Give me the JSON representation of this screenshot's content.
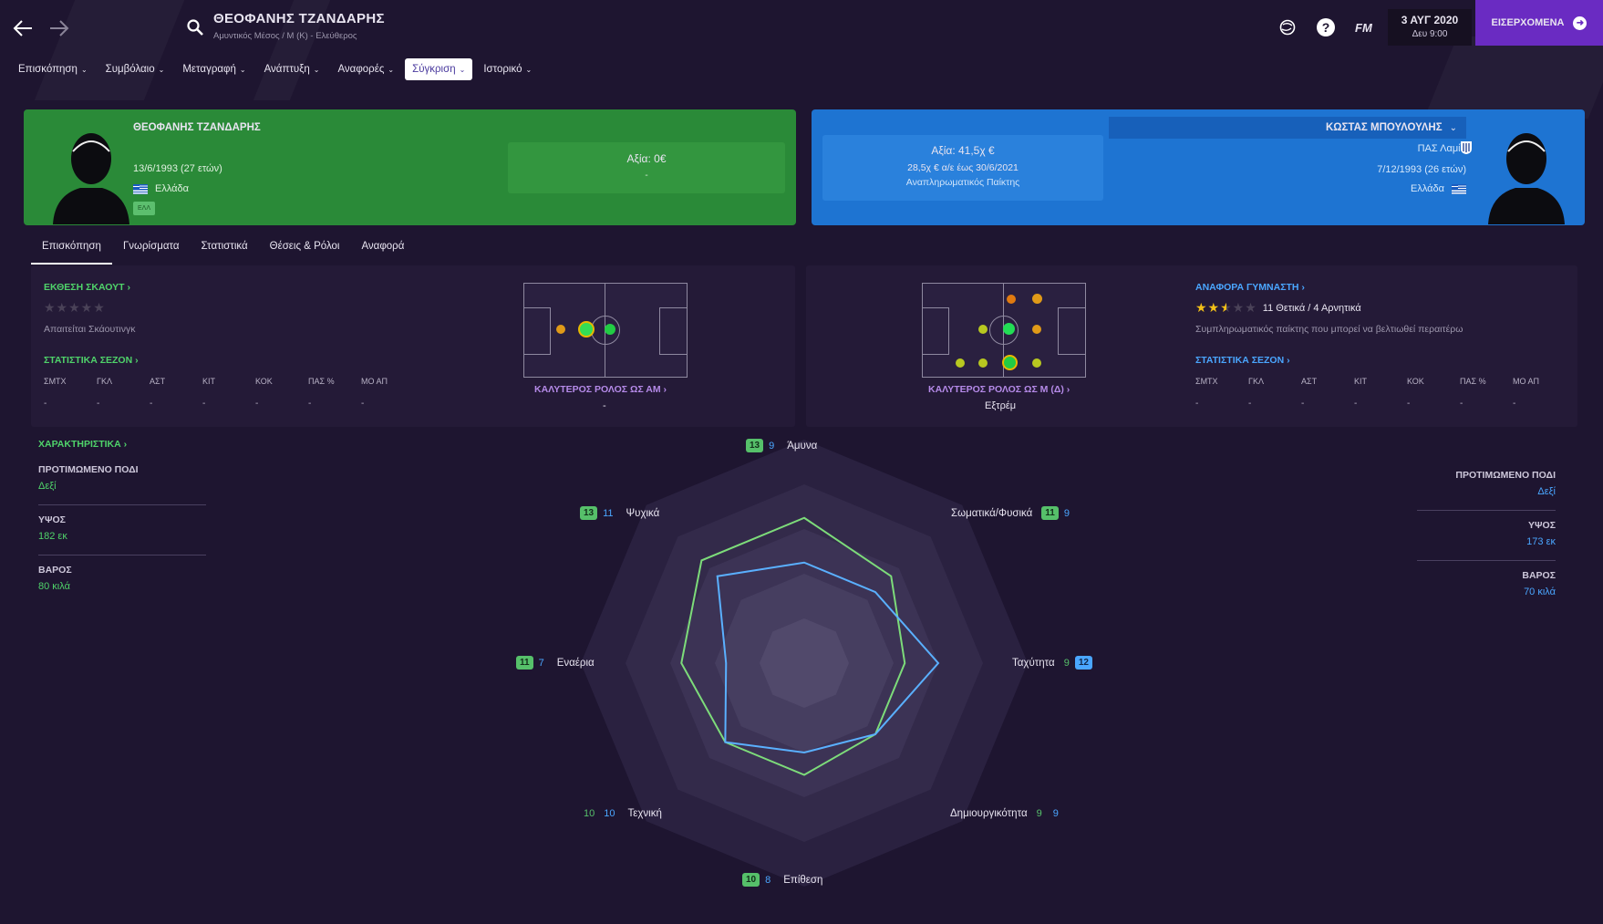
{
  "header": {
    "player_name": "ΘΕΟΦΑΝΗΣ ΤΖΑΝΔΑΡΗΣ",
    "player_sub": "Αμυντικός Μέσος / Μ (Κ) - Ελεύθερος",
    "fm_label": "FM",
    "date": "3 ΑΥΓ 2020",
    "time": "Δευ 9:00",
    "continue_label": "ΕΙΣΕΡΧΟΜΕΝΑ"
  },
  "menu": [
    {
      "label": "Επισκόπηση"
    },
    {
      "label": "Συμβόλαιο"
    },
    {
      "label": "Μεταγραφή"
    },
    {
      "label": "Ανάπτυξη"
    },
    {
      "label": "Αναφορές"
    },
    {
      "label": "Σύγκριση"
    },
    {
      "label": "Ιστορικό"
    }
  ],
  "left_player": {
    "name": "ΘΕΟΦΑΝΗΣ ΤΖΑΝΔΑΡΗΣ",
    "dob": "13/6/1993 (27 ετών)",
    "nation": "Ελλάδα",
    "nat_code": "ΕΛΛ",
    "value": "Αξία: 0€",
    "value_sub": "-"
  },
  "right_player": {
    "name": "ΚΩΣΤΑΣ ΜΠΟΥΛΟΥΛΗΣ",
    "club": "ΠΑΣ Λαμία",
    "dob": "7/12/1993 (26 ετών)",
    "nation": "Ελλάδα",
    "value": "Αξία: 41,5χ €",
    "wage": "28,5χ € α/ε έως 30/6/2021",
    "status": "Αναπληρωματικός Παίκτης"
  },
  "tabs": [
    "Επισκόπηση",
    "Γνωρίσματα",
    "Στατιστικά",
    "Θέσεις & Ρόλοι",
    "Αναφορά"
  ],
  "left_panel": {
    "scout_title": "ΕΚΘΕΣΗ ΣΚΑΟΥΤ",
    "scout_note": "Απαιτείται Σκάουτινγκ",
    "season_title": "ΣΤΑΤΙΣΤΙΚΑ ΣΕΖΟΝ",
    "stat_headers": [
      "ΣΜΤΧ",
      "ΓΚΛ",
      "ΑΣΤ",
      "ΚΙΤ",
      "ΚΟΚ",
      "ΠΑΣ %",
      "ΜΟ ΑΠ"
    ],
    "stat_values": [
      "-",
      "-",
      "-",
      "-",
      "-",
      "-",
      "-"
    ],
    "best_role_title": "ΚΑΛΥΤΕΡΟΣ ΡΟΛΟΣ ΩΣ ΑΜ",
    "best_role": "-"
  },
  "right_panel": {
    "best_role_title": "ΚΑΛΥΤΕΡΟΣ ΡΟΛΟΣ ΩΣ Μ (Δ)",
    "best_role": "Εξτρέμ",
    "coach_title": "ΑΝΑΦΟΡΑ ΓΥΜΝΑΣΤΗ",
    "coach_rating": 2.5,
    "coach_summary": "11 Θετικά / 4 Αρνητικά",
    "coach_note": "Συμπληρωματικός παίκτης που μπορεί να βελτιωθεί περαιτέρω",
    "season_title": "ΣΤΑΤΙΣΤΙΚΑ ΣΕΖΟΝ",
    "stat_headers": [
      "ΣΜΤΧ",
      "ΓΚΛ",
      "ΑΣΤ",
      "ΚΙΤ",
      "ΚΟΚ",
      "ΠΑΣ %",
      "ΜΟ ΑΠ"
    ],
    "stat_values": [
      "-",
      "-",
      "-",
      "-",
      "-",
      "-",
      "-"
    ]
  },
  "attributes_left": {
    "title": "ΧΑΡΑΚΤΗΡΙΣΤΙΚΑ",
    "foot_label": "ΠΡΟΤΙΜΩΜΕΝΟ ΠΟΔΙ",
    "foot": "Δεξί",
    "height_label": "ΥΨΟΣ",
    "height": "182 εκ",
    "weight_label": "ΒΑΡΟΣ",
    "weight": "80 κιλά"
  },
  "attributes_right": {
    "foot_label": "ΠΡΟΤΙΜΩΜΕΝΟ ΠΟΔΙ",
    "foot": "Δεξί",
    "height_label": "ΥΨΟΣ",
    "height": "173 εκ",
    "weight_label": "ΒΑΡΟΣ",
    "weight": "70 κιλά"
  },
  "radar": {
    "axes": [
      "Άμυνα",
      "Σωματικά/Φυσικά",
      "Ταχύτητα",
      "Δημιουργικότητα",
      "Επίθεση",
      "Τεχνική",
      "Εναέρια",
      "Ψυχικά"
    ],
    "left_values": [
      13,
      11,
      9,
      9,
      10,
      10,
      11,
      13
    ],
    "right_values": [
      9,
      9,
      12,
      9,
      8,
      10,
      7,
      11
    ],
    "left_color": "#7ddc7a",
    "right_color": "#5ab0ff"
  },
  "colors": {
    "green_card": "#2a8a38",
    "blue_card": "#1e74d2",
    "accent": "#6a2bc2"
  }
}
